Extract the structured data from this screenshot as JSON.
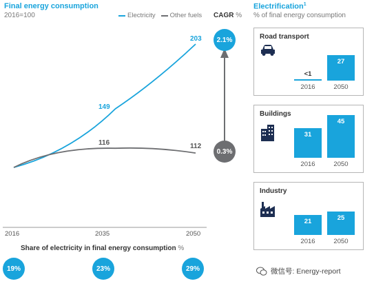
{
  "chart_data": [
    {
      "type": "line",
      "title": "Final energy consumption",
      "subtitle": "2016=100",
      "x": [
        2016,
        2035,
        2050
      ],
      "series": [
        {
          "name": "Electricity",
          "color": "#19a4dc",
          "values": [
            100,
            149,
            203
          ]
        },
        {
          "name": "Other fuels",
          "color": "#6d6e71",
          "values": [
            100,
            116,
            112
          ]
        }
      ],
      "xlim": [
        2016,
        2050
      ],
      "ylim": [
        100,
        210
      ],
      "grid": false,
      "legend": "top-right",
      "cagr": {
        "heading": "CAGR",
        "unit": "%",
        "electricity": "2.1%",
        "other_fuels": "0.3%"
      },
      "share_of_electricity": {
        "title": "Share of electricity in final energy consumption",
        "unit": "%",
        "values": [
          "19%",
          "23%",
          "29%"
        ]
      }
    },
    {
      "type": "bar",
      "title": "Electrification",
      "title_superscript": "1",
      "subtitle": "% of final energy consumption",
      "categories": [
        "2016",
        "2050"
      ],
      "panels": [
        {
          "name": "Road transport",
          "icon": "car-icon",
          "values": [
            0.5,
            27
          ],
          "labels": [
            "<1",
            "27"
          ]
        },
        {
          "name": "Buildings",
          "icon": "buildings-icon",
          "values": [
            31,
            45
          ],
          "labels": [
            "31",
            "45"
          ]
        },
        {
          "name": "Industry",
          "icon": "factory-icon",
          "values": [
            21,
            25
          ],
          "labels": [
            "21",
            "25"
          ]
        }
      ]
    }
  ],
  "watermark": "微信号: Energy-report",
  "colors": {
    "accent": "#19a4dc",
    "grey": "#6d6e71"
  }
}
